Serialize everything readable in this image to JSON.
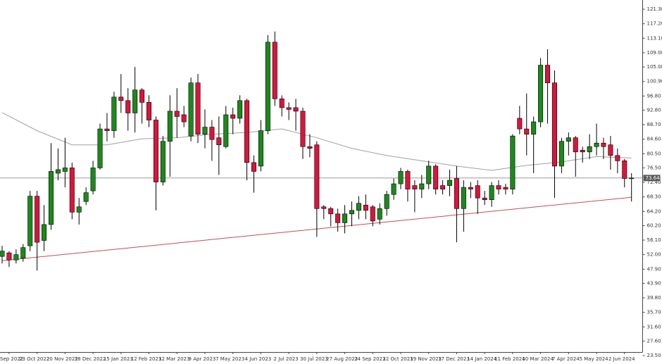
{
  "chart_data": {
    "type": "candlestick",
    "categories": [
      null,
      "Sep 2022",
      null,
      null,
      null,
      "23 Oct 2022",
      null,
      null,
      null,
      "20 Nov 2022",
      null,
      null,
      null,
      "18 Dec 2022",
      null,
      null,
      null,
      "15 Jan 2023",
      null,
      null,
      null,
      "12 Feb 2023",
      null,
      null,
      null,
      "12 Mar 2023",
      null,
      null,
      null,
      "9 Apr 2023",
      null,
      null,
      null,
      "7 May 2023",
      null,
      null,
      null,
      "4 Jun 2023",
      null,
      null,
      null,
      "2 Jul 2023",
      null,
      null,
      null,
      "30 Jul 2023",
      null,
      null,
      null,
      "27 Aug 2023",
      null,
      null,
      null,
      "24 Sep 2023",
      null,
      null,
      null,
      "22 Oct 2023",
      null,
      null,
      null,
      "19 Nov 2023",
      null,
      null,
      null,
      "17 Dec 2023",
      null,
      null,
      null,
      "14 Jan 2024",
      null,
      null,
      null,
      "11 Feb 2024",
      null,
      null,
      null,
      "10 Mar 2024",
      null,
      null,
      null,
      "7 Apr 2024",
      null,
      null,
      null,
      "5 May 2024",
      null,
      null,
      null,
      "2 Jun 2024",
      null
    ],
    "open": [
      51.5,
      52.5,
      50.5,
      51,
      54.5,
      68.5,
      56,
      60.5,
      75,
      75.5,
      76.5,
      64,
      67,
      70,
      76.5,
      87.5,
      87,
      96.5,
      95.5,
      92,
      98.5,
      95,
      90,
      72.5,
      84,
      92.5,
      91.5,
      85.5,
      100.5,
      86,
      88,
      85,
      82.5,
      91.5,
      90.5,
      95.5,
      78,
      77,
      87,
      112,
      96,
      93.5,
      93.5,
      92.5,
      82.5,
      83,
      65.5,
      65,
      63.5,
      61,
      63.5,
      64.5,
      66,
      65.5,
      62,
      65,
      69,
      72,
      75.5,
      71.5,
      70.5,
      72,
      77,
      71.5,
      71.5,
      73.5,
      65,
      71,
      71.5,
      68,
      67.5,
      71.5,
      71,
      70.5,
      90.5,
      87.5,
      86,
      89.5,
      105.5,
      100.5,
      77,
      84,
      85,
      81.5,
      81,
      82.5,
      83.5,
      83,
      80,
      78.5,
      73.5
    ],
    "high": [
      54.5,
      53,
      53.5,
      55,
      70,
      70,
      66,
      83.5,
      82,
      85,
      78,
      68,
      71,
      78.5,
      89,
      92,
      98,
      103,
      99,
      105,
      99,
      97,
      91,
      85.5,
      97,
      99,
      94,
      102,
      103,
      93,
      90,
      91,
      94,
      93.5,
      97,
      96,
      80,
      90,
      114,
      115,
      97,
      95,
      96,
      93.5,
      86,
      84,
      66,
      65.5,
      65,
      66,
      67,
      68.5,
      69,
      66,
      66.5,
      70,
      73.5,
      76.5,
      76,
      73,
      74.5,
      78.5,
      77.5,
      73,
      76,
      77,
      73,
      72.5,
      73,
      70,
      72.5,
      73,
      72,
      86,
      94,
      97.5,
      91,
      107.5,
      110,
      104,
      85,
      86.5,
      85.5,
      82.5,
      86,
      89,
      85,
      85.5,
      82,
      79,
      75
    ],
    "low": [
      49.5,
      48.5,
      49.5,
      50,
      53,
      47.5,
      53,
      59,
      73,
      71,
      62,
      60.5,
      66,
      69,
      76,
      84,
      85,
      92,
      87,
      86.5,
      89,
      88,
      64.5,
      71.5,
      74,
      85,
      88,
      84,
      83.5,
      82,
      78.5,
      74.5,
      82,
      86,
      89,
      73,
      69.5,
      75.5,
      86,
      94,
      91,
      90,
      87,
      79,
      79.5,
      57,
      62,
      60,
      58.5,
      58,
      60,
      62,
      62,
      60,
      60.5,
      63,
      67.5,
      70.5,
      67,
      64,
      68,
      70.5,
      69,
      69,
      68.5,
      55.5,
      58.5,
      68,
      63.5,
      66,
      65.5,
      69,
      69,
      69,
      86,
      80,
      75,
      88,
      89,
      68,
      75,
      80,
      74,
      78,
      79,
      80,
      79,
      76,
      75,
      71,
      67
    ],
    "close": [
      53,
      50.5,
      52,
      54,
      68.5,
      55.5,
      60.5,
      75.5,
      76,
      76.5,
      64,
      65.5,
      69.5,
      76.5,
      87.5,
      87,
      96.5,
      95.5,
      92,
      98.5,
      95,
      90,
      72.5,
      84,
      92.5,
      91,
      89.5,
      100.5,
      86,
      88,
      84.5,
      83,
      91.5,
      90.5,
      95.5,
      78,
      75.5,
      87,
      112,
      96,
      93.5,
      93,
      92.5,
      82.5,
      82,
      65,
      65,
      63.5,
      61,
      63.5,
      64.5,
      66.5,
      64.5,
      61.5,
      65,
      69,
      72,
      75.5,
      70.5,
      70.5,
      72,
      77,
      70.5,
      70.5,
      73,
      65,
      71,
      70.5,
      68,
      67.5,
      71.5,
      70.5,
      70.5,
      85.5,
      87.5,
      86,
      89.5,
      105.5,
      100.5,
      77,
      84,
      85,
      81,
      81,
      82.5,
      83.5,
      82.5,
      80,
      78.5,
      73.5,
      73.64
    ],
    "up_color": "#1a8a1a",
    "down_color": "#dc143c",
    "moving_average": {
      "color": "#a0a0a0",
      "x": [
        0,
        5,
        10,
        15,
        20,
        25,
        30,
        35,
        40,
        45,
        50,
        55,
        60,
        65,
        70,
        75,
        80,
        85,
        90
      ],
      "values": [
        92.1,
        87,
        83,
        83,
        84.7,
        85,
        86,
        86.5,
        87.5,
        85,
        82,
        80,
        78.5,
        77,
        75.8,
        77.2,
        78.2,
        79.7,
        79.3
      ]
    },
    "trendline": {
      "color": "#c0504d",
      "x": [
        0,
        90
      ],
      "values": [
        50.3,
        68.2
      ]
    },
    "last_price": {
      "value": 73.64,
      "label": "73.64"
    },
    "ylim": [
      24.5,
      123.9
    ],
    "yticks": [
      {
        "value": 121.3,
        "label": "121.30"
      },
      {
        "value": 117.2,
        "label": "117.20"
      },
      {
        "value": 113.1,
        "label": "113.10"
      },
      {
        "value": 109,
        "label": "109.00"
      },
      {
        "value": 105,
        "label": "105.00"
      },
      {
        "value": 100.9,
        "label": "100.90"
      },
      {
        "value": 96.8,
        "label": "96.80"
      },
      {
        "value": 92.8,
        "label": "92.80"
      },
      {
        "value": 88.7,
        "label": "88.70"
      },
      {
        "value": 84.6,
        "label": "84.60"
      },
      {
        "value": 80.5,
        "label": "80.50"
      },
      {
        "value": 76.5,
        "label": "76.50"
      },
      {
        "value": 72.4,
        "label": "72.40"
      },
      {
        "value": 68.3,
        "label": "68.30"
      },
      {
        "value": 64.2,
        "label": "64.20"
      },
      {
        "value": 60.2,
        "label": "60.20"
      },
      {
        "value": 56.1,
        "label": "56.10"
      },
      {
        "value": 52,
        "label": "52.00"
      },
      {
        "value": 47.9,
        "label": "47.90"
      },
      {
        "value": 43.9,
        "label": "43.90"
      },
      {
        "value": 39.8,
        "label": "39.80"
      },
      {
        "value": 35.7,
        "label": "35.70"
      },
      {
        "value": 31.6,
        "label": "31.60"
      },
      {
        "value": 27.6,
        "label": "27.60"
      },
      {
        "value": 23.5,
        "label": "23.50"
      }
    ],
    "grid": false
  }
}
